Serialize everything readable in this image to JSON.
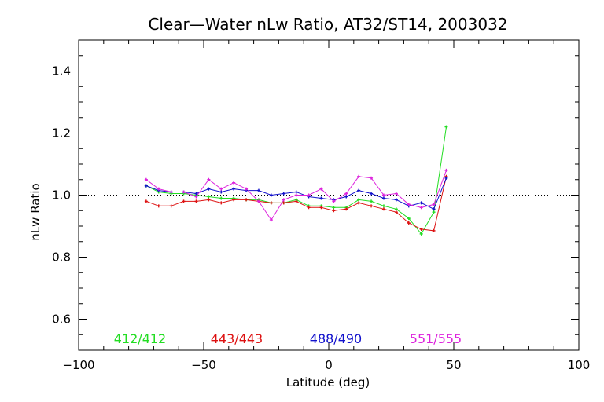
{
  "chart_data": {
    "type": "line",
    "title": "Clear—Water nLw Ratio, AT32/ST14, 2003032",
    "xlabel": "Latitude (deg)",
    "ylabel": "nLw Ratio",
    "xlim": [
      -100,
      100
    ],
    "ylim": [
      0.5,
      1.5
    ],
    "xticks": [
      -100,
      -50,
      0,
      50,
      100
    ],
    "xtick_labels": [
      "−100",
      "−50",
      "0",
      "50",
      "100"
    ],
    "yticks": [
      0.6,
      0.8,
      1.0,
      1.2,
      1.4
    ],
    "ytick_labels": [
      "0.6",
      "0.8",
      "1.0",
      "1.2",
      "1.4"
    ],
    "reference_line": 1.0,
    "grid": false,
    "legend_position": "bottom",
    "x": [
      -73,
      -68,
      -63,
      -58,
      -53,
      -48,
      -43,
      -38,
      -33,
      -28,
      -23,
      -18,
      -13,
      -8,
      -3,
      2,
      7,
      12,
      17,
      22,
      27,
      32,
      37,
      42,
      47
    ],
    "series": [
      {
        "name": "412/412",
        "color": "#22dd22",
        "values": [
          1.03,
          1.01,
          1.005,
          1.005,
          1.0,
          0.995,
          0.99,
          0.99,
          0.985,
          0.985,
          0.975,
          0.975,
          0.985,
          0.965,
          0.965,
          0.96,
          0.96,
          0.985,
          0.98,
          0.965,
          0.955,
          0.925,
          0.875,
          0.945,
          1.22
        ]
      },
      {
        "name": "443/443",
        "color": "#dd1111",
        "values": [
          0.98,
          0.965,
          0.965,
          0.98,
          0.98,
          0.985,
          0.975,
          0.985,
          0.985,
          0.98,
          0.975,
          0.975,
          0.98,
          0.96,
          0.96,
          0.95,
          0.955,
          0.975,
          0.965,
          0.955,
          0.945,
          0.91,
          0.89,
          0.885,
          1.06
        ]
      },
      {
        "name": "488/490",
        "color": "#1111cc",
        "values": [
          1.03,
          1.015,
          1.01,
          1.01,
          1.005,
          1.02,
          1.01,
          1.02,
          1.015,
          1.015,
          1.0,
          1.005,
          1.01,
          0.995,
          0.99,
          0.985,
          0.995,
          1.015,
          1.005,
          0.99,
          0.985,
          0.965,
          0.975,
          0.955,
          1.055
        ]
      },
      {
        "name": "551/555",
        "color": "#dd22dd",
        "values": [
          1.05,
          1.02,
          1.01,
          1.01,
          0.995,
          1.05,
          1.02,
          1.04,
          1.02,
          0.98,
          0.92,
          0.985,
          1.0,
          1.0,
          1.02,
          0.98,
          1.005,
          1.06,
          1.055,
          1.0,
          1.005,
          0.97,
          0.96,
          0.97,
          1.08
        ]
      }
    ]
  }
}
